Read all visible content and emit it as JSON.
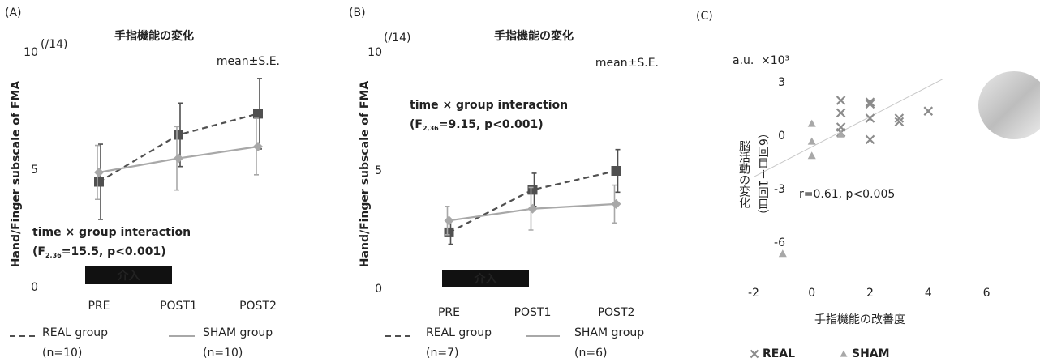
{
  "chart_data": [
    {
      "type": "line",
      "panel_label": "(A)",
      "title": "手指機能の変化",
      "y_label": "Hand/Finger subscale of FMA",
      "y_unit": "(/14)",
      "note": "mean±S.E.",
      "interaction": {
        "text": "time × group interaction",
        "stat_prefix": "(F",
        "stat_sub": "2,36",
        "stat_suffix": "=15.5, p<0.001)"
      },
      "intervention_label": "介入",
      "categories": [
        "PRE",
        "POST1",
        "POST2"
      ],
      "ylim": [
        0,
        10
      ],
      "yticks": [
        0,
        5,
        10
      ],
      "series": [
        {
          "name": "REAL group",
          "n_label": "(n=10)",
          "color": "#505050",
          "line_style": "dashed",
          "marker": "square",
          "values": [
            4.5,
            6.5,
            7.4
          ],
          "errors": [
            1.6,
            1.35,
            1.5
          ]
        },
        {
          "name": "SHAM group",
          "n_label": "(n=10)",
          "color": "#a8a8a8",
          "line_style": "solid",
          "marker": "diamond",
          "values": [
            4.9,
            5.5,
            6.0
          ],
          "errors": [
            1.15,
            1.35,
            1.2
          ]
        }
      ]
    },
    {
      "type": "line",
      "panel_label": "(B)",
      "title": "手指機能の変化",
      "y_label": "Hand/Finger subscale of FMA",
      "y_unit": "(/14)",
      "note": "mean±S.E.",
      "interaction": {
        "text": "time × group interaction",
        "stat_prefix": "(F",
        "stat_sub": "2,36",
        "stat_suffix": "=9.15, p<0.001)"
      },
      "intervention_label": "介入",
      "categories": [
        "PRE",
        "POST1",
        "POST2"
      ],
      "ylim": [
        0,
        10
      ],
      "yticks": [
        0,
        5,
        10
      ],
      "series": [
        {
          "name": "REAL group",
          "n_label": "(n=7)",
          "color": "#505050",
          "line_style": "dashed",
          "marker": "square",
          "values": [
            2.4,
            4.2,
            5.0
          ],
          "errors": [
            0.5,
            0.7,
            0.9
          ]
        },
        {
          "name": "SHAM group",
          "n_label": "(n=6)",
          "color": "#a8a8a8",
          "line_style": "solid",
          "marker": "diamond",
          "values": [
            2.9,
            3.4,
            3.6
          ],
          "errors": [
            0.6,
            0.9,
            0.8
          ]
        }
      ]
    },
    {
      "type": "scatter",
      "panel_label": "(C)",
      "x_label": "手指機能の改善度",
      "y_label": "脳活動の変化",
      "y_label_sub": "（6回目－1回目）",
      "unit_label": "a.u.",
      "scale_label": "×10³",
      "annotation": "r=0.61, p<0.005",
      "xlim": [
        -2.5,
        6.5
      ],
      "xticks": [
        -2,
        0,
        2,
        4,
        6
      ],
      "ylim": [
        -8,
        4
      ],
      "yticks": [
        -6,
        -3,
        0,
        3
      ],
      "trend_line": {
        "x": [
          -2,
          4.5
        ],
        "y": [
          -2.3,
          3.2
        ],
        "color": "#c8c8c8"
      },
      "series": [
        {
          "name": "REAL",
          "marker": "x",
          "color": "#8c8c8c",
          "x": [
            1,
            1,
            1,
            1,
            2,
            2,
            2,
            2,
            3,
            3,
            4
          ],
          "values": [
            2.0,
            1.3,
            0.5,
            0.2,
            1.9,
            1.8,
            1.0,
            -0.2,
            1.0,
            0.8,
            1.4
          ]
        },
        {
          "name": "SHAM",
          "marker": "triangle",
          "color": "#a8a8a8",
          "x": [
            -1,
            0,
            0,
            0,
            1
          ],
          "values": [
            -6.6,
            0.7,
            -0.3,
            -1.1,
            0.1
          ]
        }
      ]
    }
  ]
}
